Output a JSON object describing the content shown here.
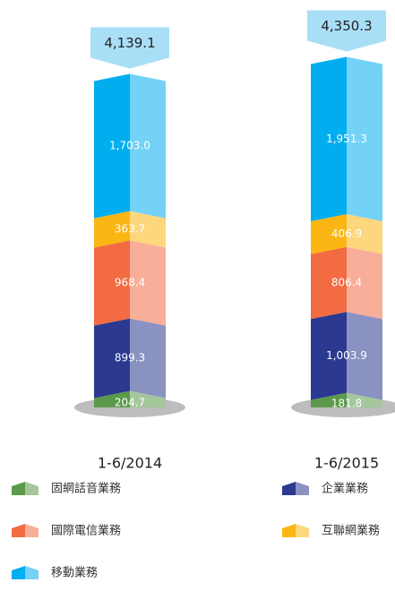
{
  "chart_data": {
    "type": "stacked-bar",
    "categories": [
      "1-6/2014",
      "1-6/2015"
    ],
    "series": [
      {
        "name": "固網話音業務",
        "color": "#5a9a4a",
        "values": [
          204.7,
          181.8
        ]
      },
      {
        "name": "企業業務",
        "color": "#2b3990",
        "values": [
          899.3,
          1003.9
        ],
        "value_labels": [
          "899.3",
          "1,003.9"
        ]
      },
      {
        "name": "國際電信業務",
        "color": "#f26b43",
        "values": [
          968.4,
          806.4
        ]
      },
      {
        "name": "互聯網業務",
        "color": "#fbb614",
        "values": [
          363.7,
          406.9
        ]
      },
      {
        "name": "移動業務",
        "color": "#00aeef",
        "values": [
          1703.0,
          1951.3
        ],
        "value_labels": [
          "1,703.0",
          "1,951.3"
        ]
      }
    ],
    "totals": [
      4139.1,
      4350.3
    ],
    "total_labels": [
      "4,139.1",
      "4,350.3"
    ]
  }
}
